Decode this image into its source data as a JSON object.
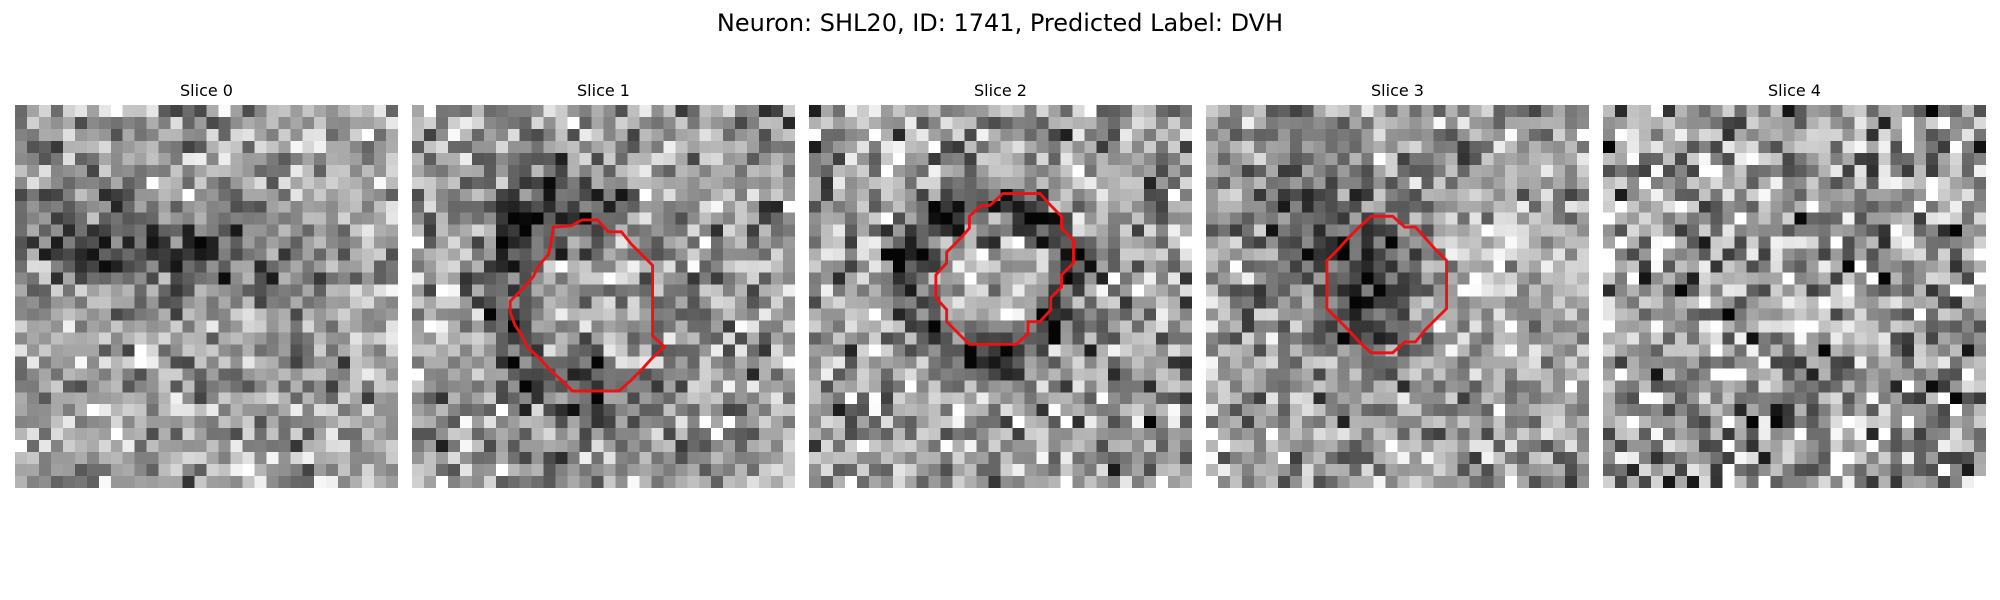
{
  "figure": {
    "title": "Neuron: SHL20, ID: 1741, Predicted Label: DVH",
    "outline_color": "#ee1111",
    "panels": [
      {
        "title": "Slice 0",
        "seed": 17,
        "has_contour": false
      },
      {
        "title": "Slice 1",
        "seed": 29,
        "has_contour": true
      },
      {
        "title": "Slice 2",
        "seed": 41,
        "has_contour": true
      },
      {
        "title": "Slice 3",
        "seed": 53,
        "has_contour": true
      },
      {
        "title": "Slice 4",
        "seed": 67,
        "has_contour": false
      }
    ]
  }
}
